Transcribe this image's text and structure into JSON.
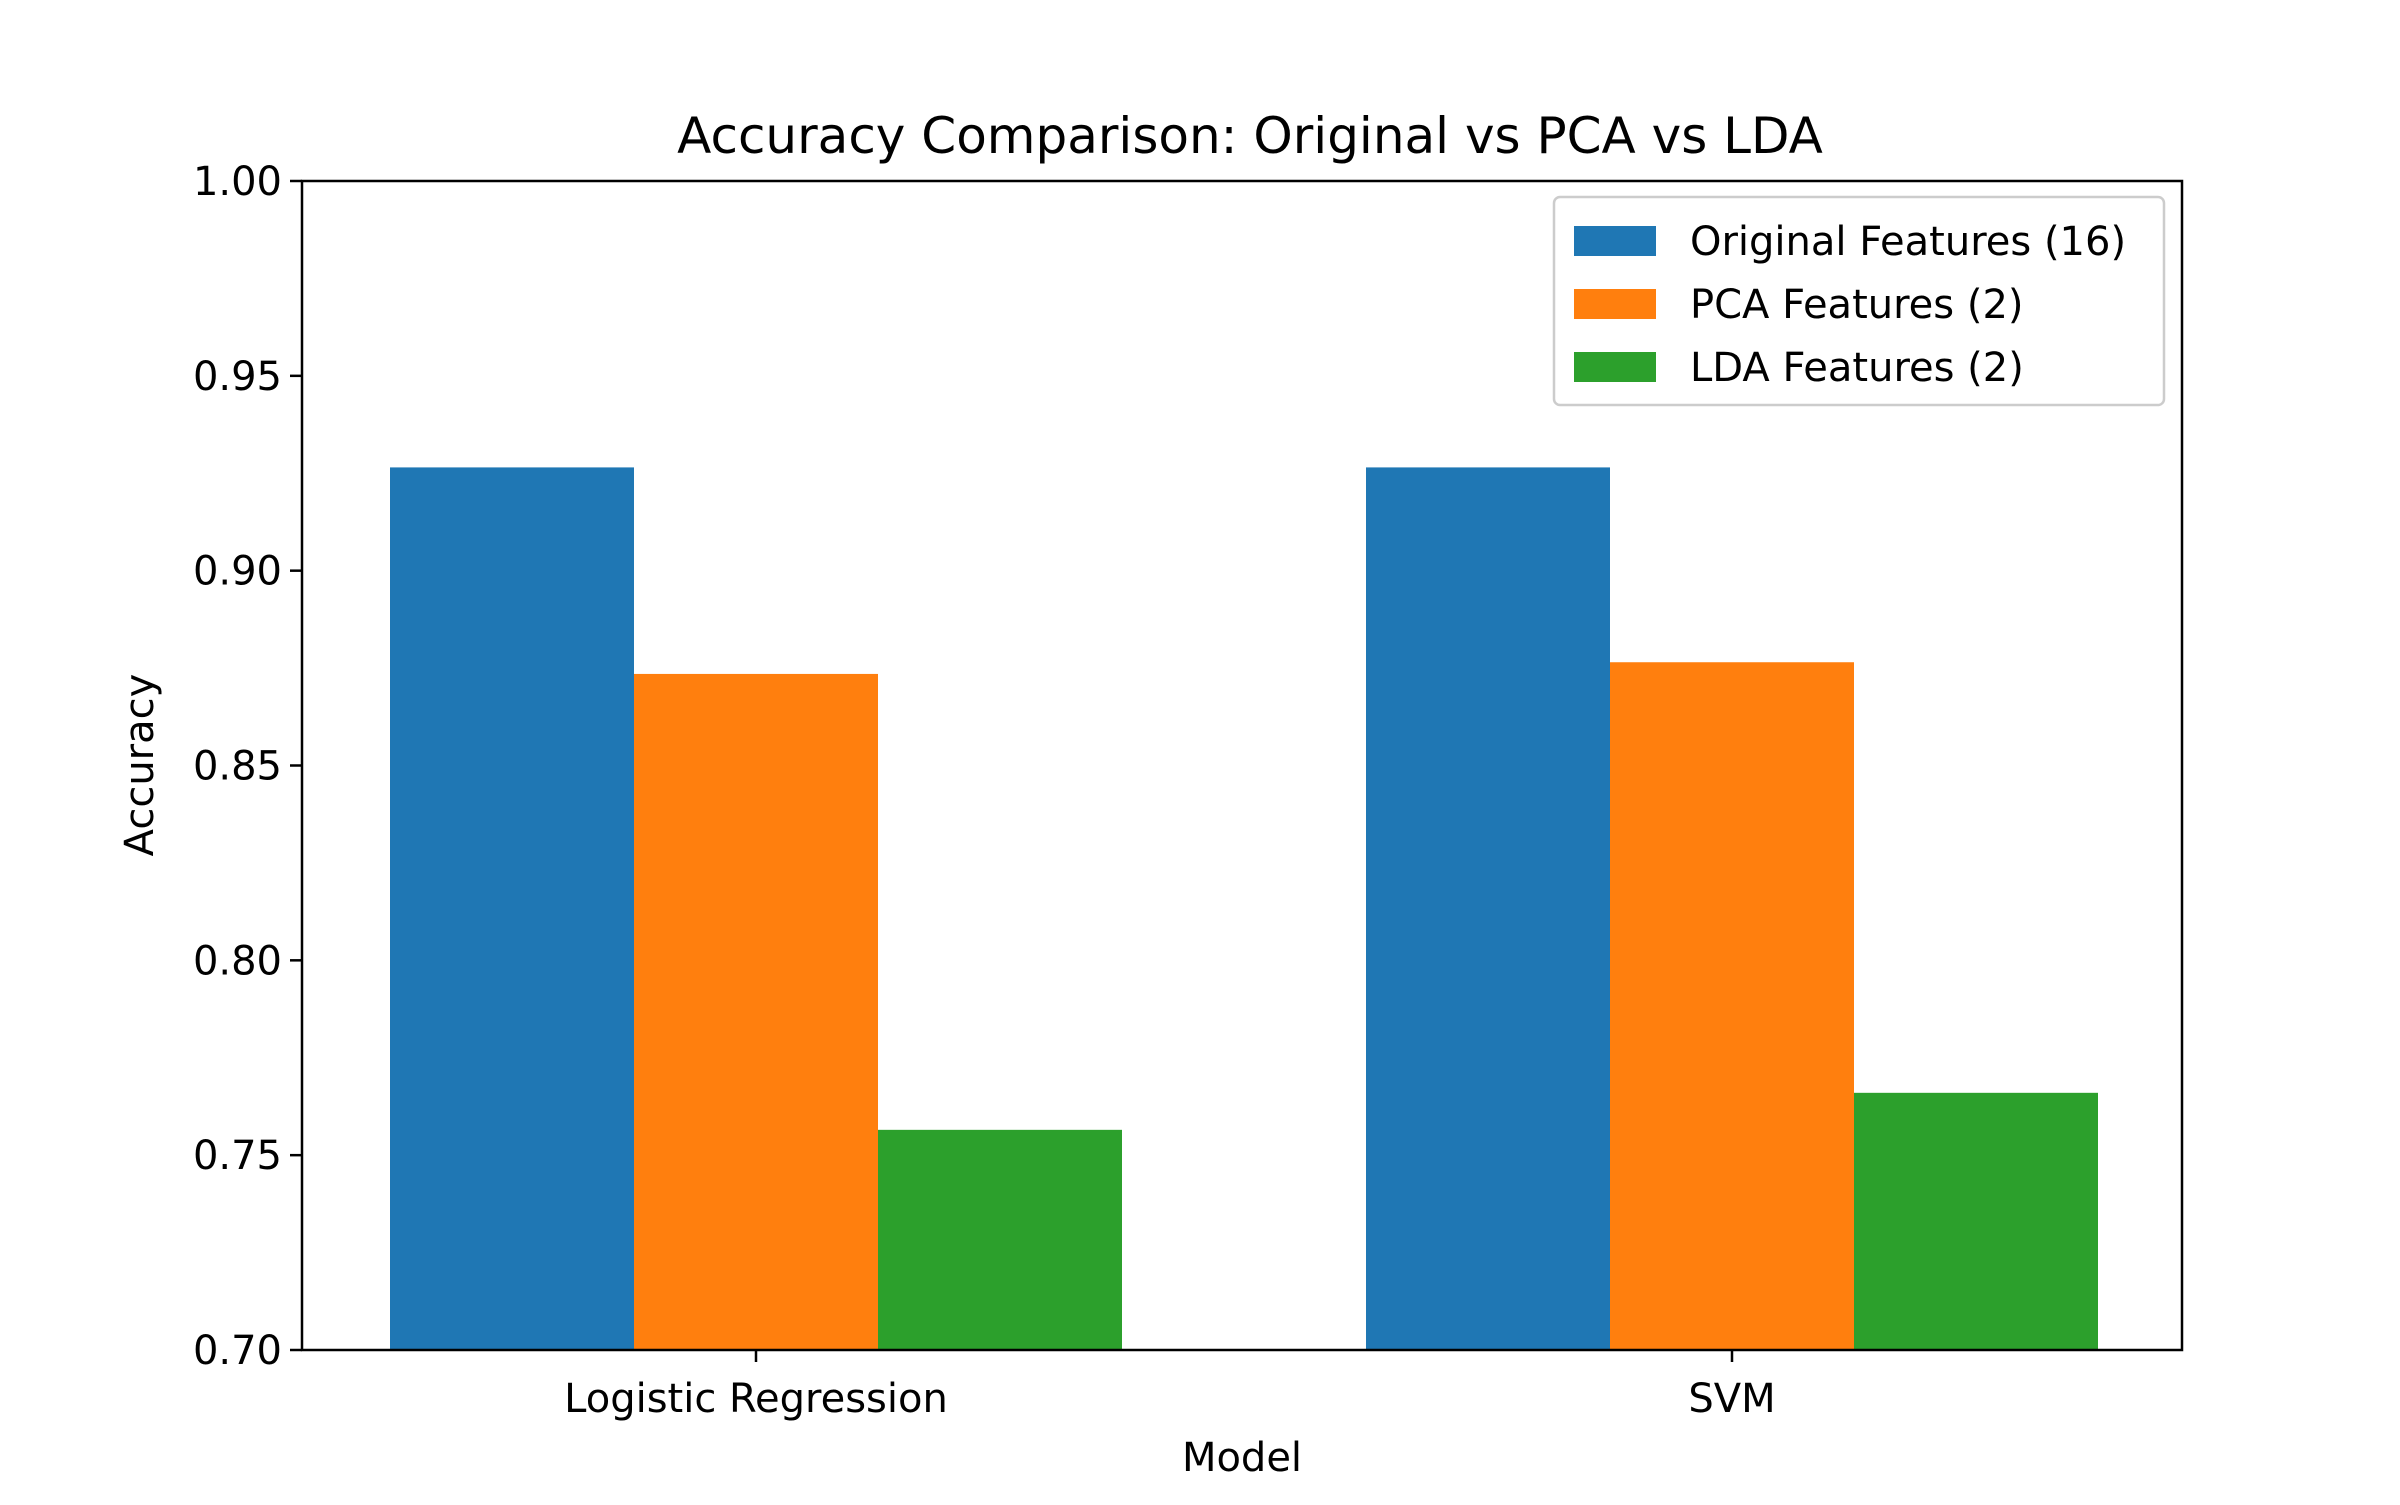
{
  "chart_data": {
    "type": "bar",
    "title": "Accuracy Comparison: Original vs PCA vs LDA",
    "xlabel": "Model",
    "ylabel": "Accuracy",
    "categories": [
      "Logistic Regression",
      "SVM"
    ],
    "series": [
      {
        "name": "Original Features (16)",
        "color": "#1f77b4",
        "values": [
          0.9265,
          0.9265
        ]
      },
      {
        "name": "PCA Features (2)",
        "color": "#ff7f0e",
        "values": [
          0.8735,
          0.8765
        ]
      },
      {
        "name": "LDA Features (2)",
        "color": "#2ca02c",
        "values": [
          0.7565,
          0.766
        ]
      }
    ],
    "ylim": [
      0.7,
      1.0
    ],
    "yticks": [
      "0.70",
      "0.75",
      "0.80",
      "0.85",
      "0.90",
      "0.95",
      "1.00"
    ],
    "legend_position": "upper right",
    "grid": false
  }
}
